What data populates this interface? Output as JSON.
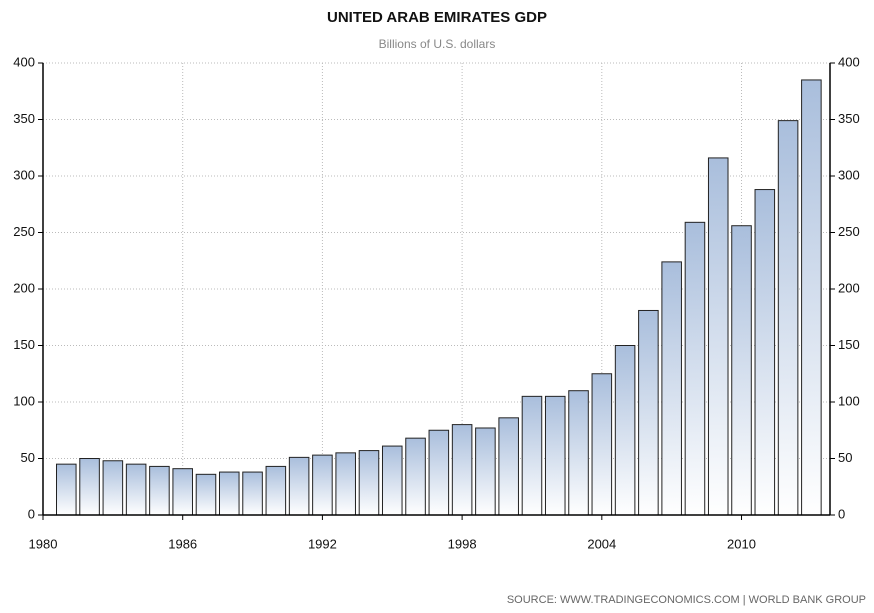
{
  "chart_data": {
    "type": "bar",
    "title": "UNITED ARAB EMIRATES GDP",
    "subtitle": "Billions of U.S. dollars",
    "source": "SOURCE:  WWW.TRADINGECONOMICS.COM  |  WORLD BANK GROUP",
    "x": [
      1981,
      1982,
      1983,
      1984,
      1985,
      1986,
      1987,
      1988,
      1989,
      1990,
      1991,
      1992,
      1993,
      1994,
      1995,
      1996,
      1997,
      1998,
      1999,
      2000,
      2001,
      2002,
      2003,
      2004,
      2005,
      2006,
      2007,
      2008,
      2009,
      2010,
      2011,
      2012,
      2013
    ],
    "values": [
      45,
      50,
      48,
      45,
      43,
      41,
      36,
      38,
      38,
      43,
      51,
      53,
      55,
      57,
      61,
      68,
      75,
      80,
      77,
      86,
      105,
      105,
      110,
      125,
      150,
      181,
      224,
      259,
      316,
      256,
      288,
      349,
      385
    ],
    "color": "#a9bedc",
    "xlim": [
      1980,
      2013.8
    ],
    "xticks": [
      1980,
      1986,
      1992,
      1998,
      2004,
      2010
    ],
    "ylim": [
      0,
      400
    ],
    "yticks": [
      0,
      50,
      100,
      150,
      200,
      250,
      300,
      350,
      400
    ],
    "y2lim": [
      0,
      400
    ],
    "y2ticks": [
      0,
      50,
      100,
      150,
      200,
      250,
      300,
      350,
      400
    ],
    "grid": true
  }
}
